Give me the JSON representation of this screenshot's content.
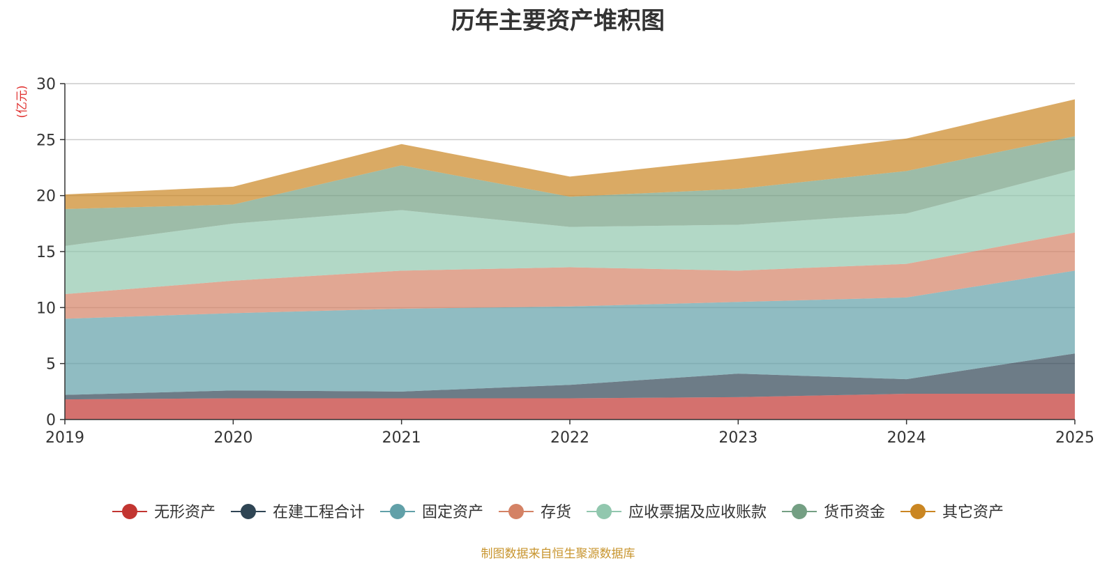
{
  "chart_data": {
    "type": "area",
    "stacked": true,
    "title": "历年主要资产堆积图",
    "ylabel": "(亿元)",
    "x": [
      "2019",
      "2020",
      "2021",
      "2022",
      "2023",
      "2024",
      "2025"
    ],
    "ylim": [
      0,
      30
    ],
    "yticks": [
      "0",
      "5",
      "10",
      "15",
      "20",
      "25",
      "30"
    ],
    "grid": true,
    "legend_position": "bottom",
    "series": [
      {
        "name": "无形资产",
        "color": "#c23531",
        "values": [
          1.8,
          1.9,
          1.9,
          1.9,
          2.0,
          2.3,
          2.3
        ]
      },
      {
        "name": "在建工程合计",
        "color": "#2f4554",
        "values": [
          0.4,
          0.7,
          0.6,
          1.2,
          2.1,
          1.3,
          3.6
        ]
      },
      {
        "name": "固定资产",
        "color": "#61a0a8",
        "values": [
          6.8,
          6.9,
          7.4,
          7.0,
          6.4,
          7.3,
          7.4
        ]
      },
      {
        "name": "存货",
        "color": "#d48265",
        "values": [
          2.2,
          2.9,
          3.4,
          3.5,
          2.8,
          3.0,
          3.4
        ]
      },
      {
        "name": "应收票据及应收账款",
        "color": "#91c7ae",
        "values": [
          4.3,
          5.1,
          5.4,
          3.6,
          4.1,
          4.5,
          5.6
        ]
      },
      {
        "name": "货币资金",
        "color": "#749f83",
        "values": [
          3.3,
          1.7,
          4.0,
          2.7,
          3.2,
          3.8,
          3.0
        ]
      },
      {
        "name": "其它资产",
        "color": "#ca8622",
        "values": [
          1.3,
          1.6,
          1.9,
          1.8,
          2.7,
          2.9,
          3.3
        ]
      }
    ]
  },
  "source_note": "制图数据来自恒生聚源数据库"
}
